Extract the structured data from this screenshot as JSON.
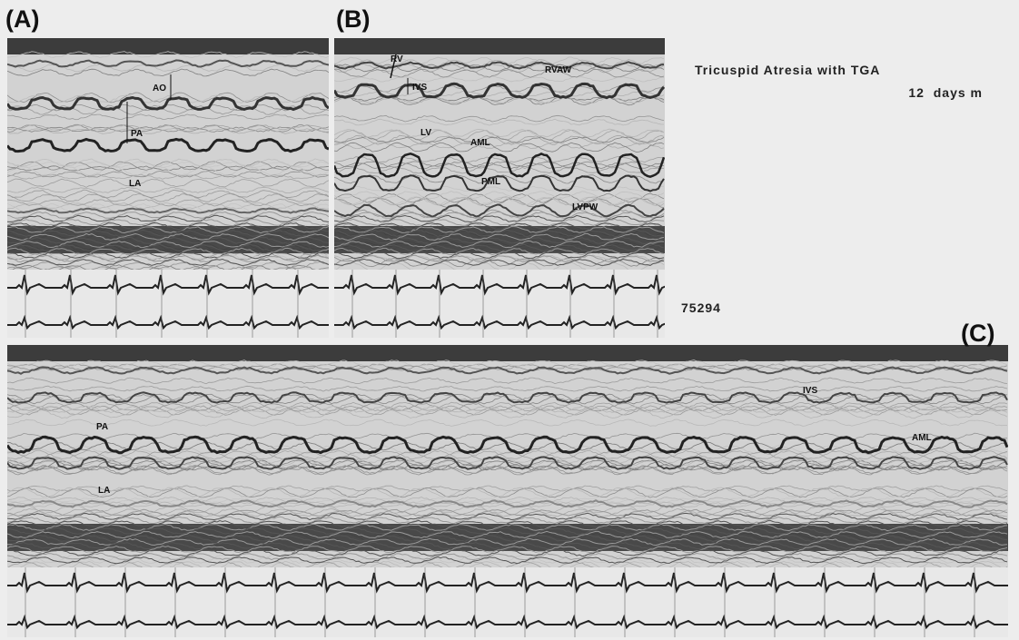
{
  "panels": [
    {
      "label": "(A)",
      "annotations": [
        "AO",
        "PA",
        "LA"
      ]
    },
    {
      "label": "(B)",
      "annotations": [
        "RV",
        "IVS",
        "RVAW",
        "LV",
        "AML",
        "PML",
        "LVPW"
      ]
    },
    {
      "label": "(C)",
      "annotations": [
        "IVS",
        "PA",
        "AML",
        "LA"
      ]
    }
  ],
  "caption": {
    "title": "Tricuspid Atresia with TGA",
    "subtitle": "12  days m",
    "id": "75294"
  }
}
